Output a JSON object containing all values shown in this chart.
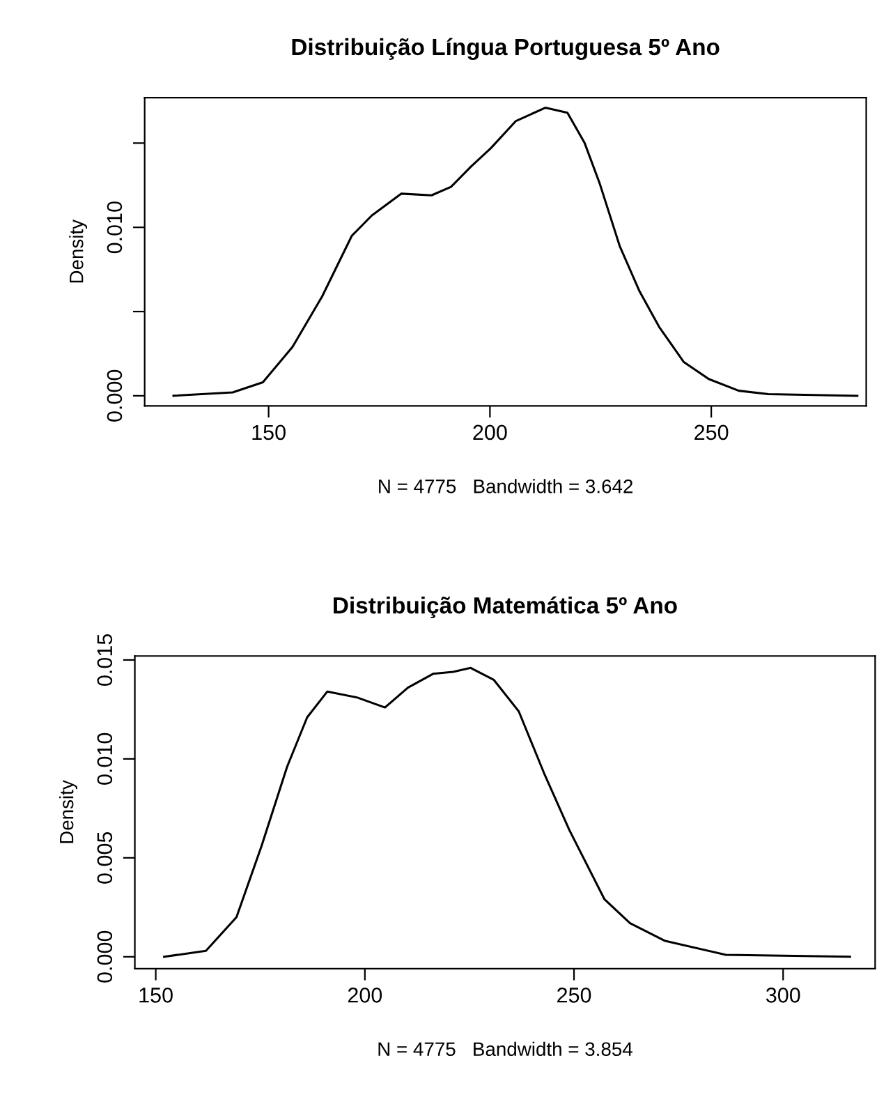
{
  "chart_data": [
    {
      "type": "line",
      "title": "Distribuição Língua Portuguesa 5º Ano",
      "xlabel": "N = 4775   Bandwidth = 3.642",
      "ylabel": "Density",
      "x": [
        128.5,
        141.9,
        148.7,
        155.4,
        162.1,
        168.8,
        173.3,
        180,
        186.8,
        191.2,
        195.7,
        200.2,
        205.8,
        212.5,
        217.5,
        221.4,
        224.8,
        229.3,
        233.8,
        238.2,
        243.8,
        249.4,
        256.2,
        262.9,
        283
      ],
      "series": [
        {
          "color": "#000000",
          "values": [
            0,
            0.0002,
            0.0008,
            0.0029,
            0.0059,
            0.0095,
            0.0107,
            0.012,
            0.0119,
            0.0124,
            0.0136,
            0.0147,
            0.0163,
            0.0171,
            0.0168,
            0.015,
            0.0126,
            0.0089,
            0.0062,
            0.0041,
            0.002,
            0.001,
            0.0003,
            0.0001,
            0
          ]
        }
      ],
      "xlim": [
        122,
        285
      ],
      "ylim": [
        -0.0006,
        0.0177
      ],
      "xticks": [
        150,
        200,
        250
      ],
      "yticks": [
        {
          "value": 0,
          "label": "0.000"
        },
        {
          "value": 0.005,
          "label": null
        },
        {
          "value": 0.01,
          "label": "0.010"
        },
        {
          "value": 0.015,
          "label": null
        }
      ],
      "grid": false,
      "marker": "none",
      "line_style": "solid"
    },
    {
      "type": "line",
      "title": "Distribuição Matemática 5º Ano",
      "xlabel": "N = 4775   Bandwidth = 3.854",
      "ylabel": "Density",
      "x": [
        152,
        162,
        169.3,
        175.3,
        181.4,
        186.2,
        191,
        198.2,
        204.8,
        210.3,
        216.3,
        221.1,
        225.3,
        230.8,
        236.8,
        242.8,
        248.9,
        257.3,
        263.4,
        271.8,
        286.3,
        316
      ],
      "series": [
        {
          "color": "#000000",
          "values": [
            0,
            0.0003,
            0.002,
            0.0056,
            0.0096,
            0.0121,
            0.0134,
            0.0131,
            0.0126,
            0.0136,
            0.0143,
            0.0144,
            0.0146,
            0.014,
            0.0124,
            0.0093,
            0.0064,
            0.0029,
            0.0017,
            0.0008,
            0.0001,
            0
          ]
        }
      ],
      "xlim": [
        145,
        322
      ],
      "ylim": [
        -0.0006,
        0.0152
      ],
      "xticks": [
        150,
        200,
        250,
        300
      ],
      "yticks": [
        {
          "value": 0,
          "label": "0.000"
        },
        {
          "value": 0.005,
          "label": "0.005"
        },
        {
          "value": 0.01,
          "label": "0.010"
        },
        {
          "value": 0.015,
          "label": "0.015"
        }
      ],
      "grid": false,
      "marker": "none",
      "line_style": "solid"
    }
  ]
}
